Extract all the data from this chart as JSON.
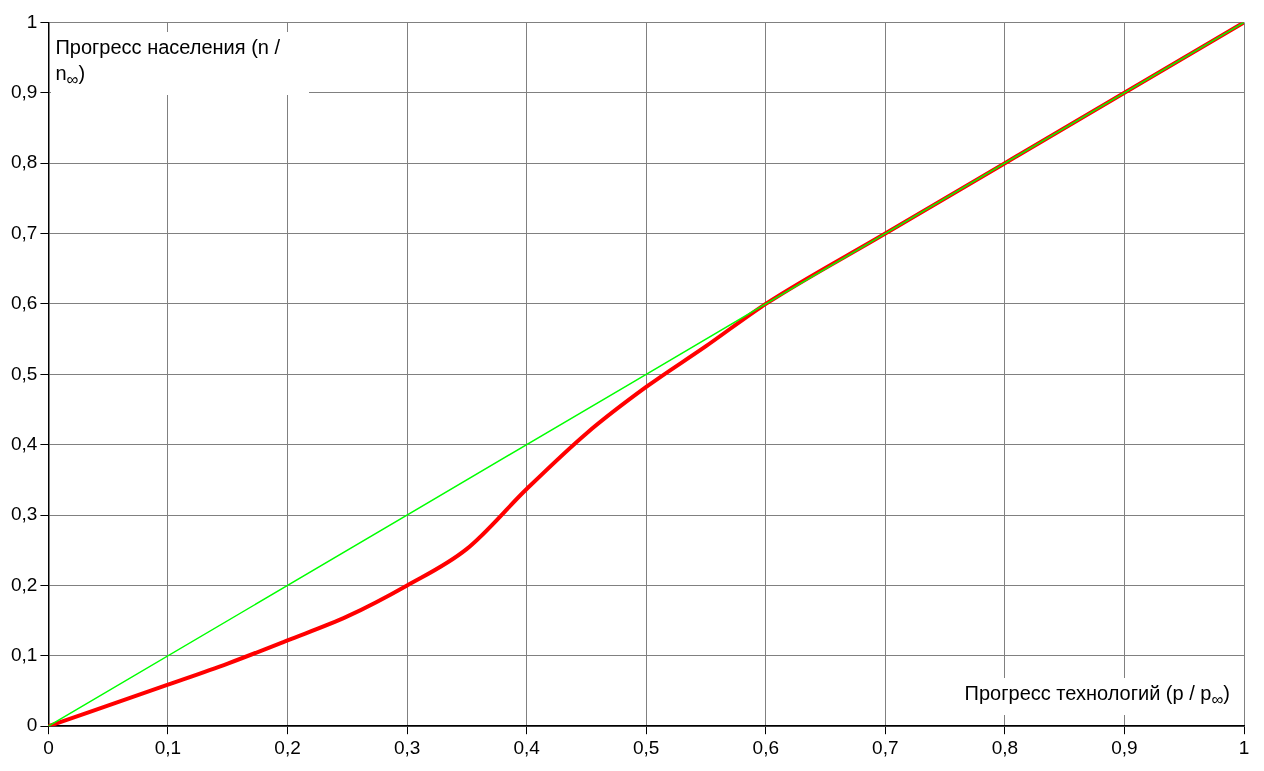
{
  "chart_data": {
    "type": "line",
    "xlabel": "Прогресс технологий (p / p$_{∞}$)",
    "ylabel": "Прогресс населения (n / n$_{∞}$)",
    "series": [
      {
        "color": "#00ff00",
        "x": [
          0,
          1
        ],
        "values": [
          0,
          1
        ]
      },
      {
        "color": "#ff0000",
        "x": [
          0,
          0.1,
          0.15,
          0.2,
          0.25,
          0.3,
          0.35,
          0.4,
          0.45,
          0.5,
          0.55,
          0.6,
          0.7,
          0.8,
          0.9,
          1
        ],
        "values": [
          0,
          0.059,
          0.089,
          0.122,
          0.156,
          0.2,
          0.252,
          0.337,
          0.416,
          0.482,
          0.54,
          0.6,
          0.7,
          0.8,
          0.9,
          1
        ]
      }
    ],
    "xlim": [
      0,
      1
    ],
    "ylim": [
      0,
      1
    ],
    "xticks": [
      0,
      {
        "value": 0.1,
        "label": "0,1"
      },
      {
        "value": 0.2,
        "label": "0,2"
      },
      {
        "value": 0.3,
        "label": "0,3"
      },
      {
        "value": 0.4,
        "label": "0,4"
      },
      {
        "value": 0.5,
        "label": "0,5"
      },
      {
        "value": 0.6,
        "label": "0,6"
      },
      {
        "value": 0.7,
        "label": "0,7"
      },
      {
        "value": 0.8,
        "label": "0,8"
      },
      {
        "value": 0.9,
        "label": "0,9"
      },
      1
    ],
    "yticks": [
      0,
      {
        "value": 0.1,
        "label": "0,1"
      },
      {
        "value": 0.2,
        "label": "0,2"
      },
      {
        "value": 0.3,
        "label": "0,3"
      },
      {
        "value": 0.4,
        "label": "0,4"
      },
      {
        "value": 0.5,
        "label": "0,5"
      },
      {
        "value": 0.6,
        "label": "0,6"
      },
      {
        "value": 0.7,
        "label": "0,7"
      },
      {
        "value": 0.8,
        "label": "0,8"
      },
      {
        "value": 0.9,
        "label": "0,9"
      },
      1
    ],
    "grid": true,
    "marker": "none",
    "line_style": "solid",
    "legend": false
  }
}
